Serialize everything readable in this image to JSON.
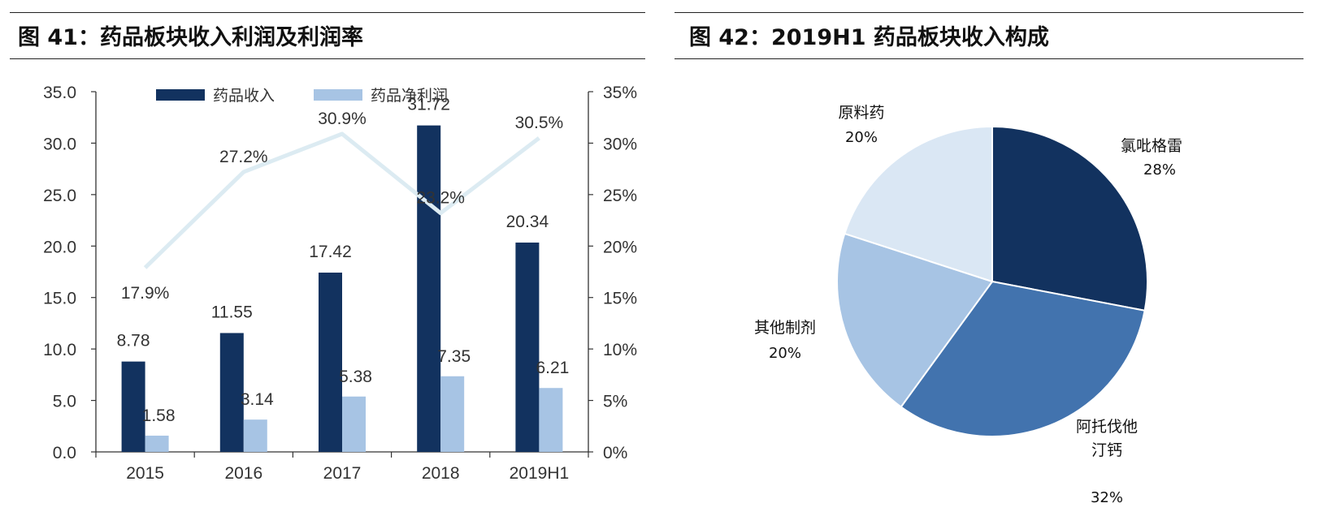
{
  "figures": {
    "left_title": "图 41：药品板块收入利润及利润率",
    "right_title": "图 42：2019H1 药品板块收入构成"
  },
  "chart_data": [
    {
      "type": "bar",
      "title": "图 41：药品板块收入利润及利润率",
      "categories": [
        "2015",
        "2016",
        "2017",
        "2018",
        "2019H1"
      ],
      "series": [
        {
          "name": "药品收入",
          "values": [
            8.78,
            11.55,
            17.42,
            31.72,
            20.34
          ],
          "labels": [
            "8.78",
            "11.55",
            "17.42",
            "31.72",
            "20.34"
          ],
          "color": "#12325f"
        },
        {
          "name": "药品净利润",
          "values": [
            1.58,
            3.14,
            5.38,
            7.35,
            6.21
          ],
          "labels": [
            "1.58",
            "3.14",
            "5.38",
            "7.35",
            "6.21"
          ],
          "color": "#a7c4e4"
        }
      ],
      "line": {
        "values": [
          17.9,
          27.2,
          30.9,
          23.2,
          30.5
        ],
        "labels": [
          "17.9%",
          "27.2%",
          "30.9%",
          "23.2%",
          "30.5%"
        ],
        "color": "#dcebf2"
      },
      "ylim": [
        0,
        35
      ],
      "yticks": [
        "0.0",
        "5.0",
        "10.0",
        "15.0",
        "20.0",
        "25.0",
        "30.0",
        "35.0"
      ],
      "y2lim": [
        0,
        35
      ],
      "y2ticks": [
        "0%",
        "5%",
        "10%",
        "15%",
        "20%",
        "25%",
        "30%",
        "35%"
      ],
      "legend_position": "top",
      "grid": false
    },
    {
      "type": "pie",
      "title": "图 42：2019H1 药品板块收入构成",
      "slices": [
        {
          "name": "氯吡格雷",
          "value": 28,
          "label": "28%",
          "color": "#12325f"
        },
        {
          "name": "阿托伐他汀钙",
          "name_lines": [
            "阿托伐他",
            "汀钙"
          ],
          "value": 32,
          "label": "32%",
          "color": "#4273ae"
        },
        {
          "name": "其他制剂",
          "value": 20,
          "label": "20%",
          "color": "#a7c4e4"
        },
        {
          "name": "原料药",
          "value": 20,
          "label": "20%",
          "color": "#dae7f4"
        }
      ]
    }
  ]
}
